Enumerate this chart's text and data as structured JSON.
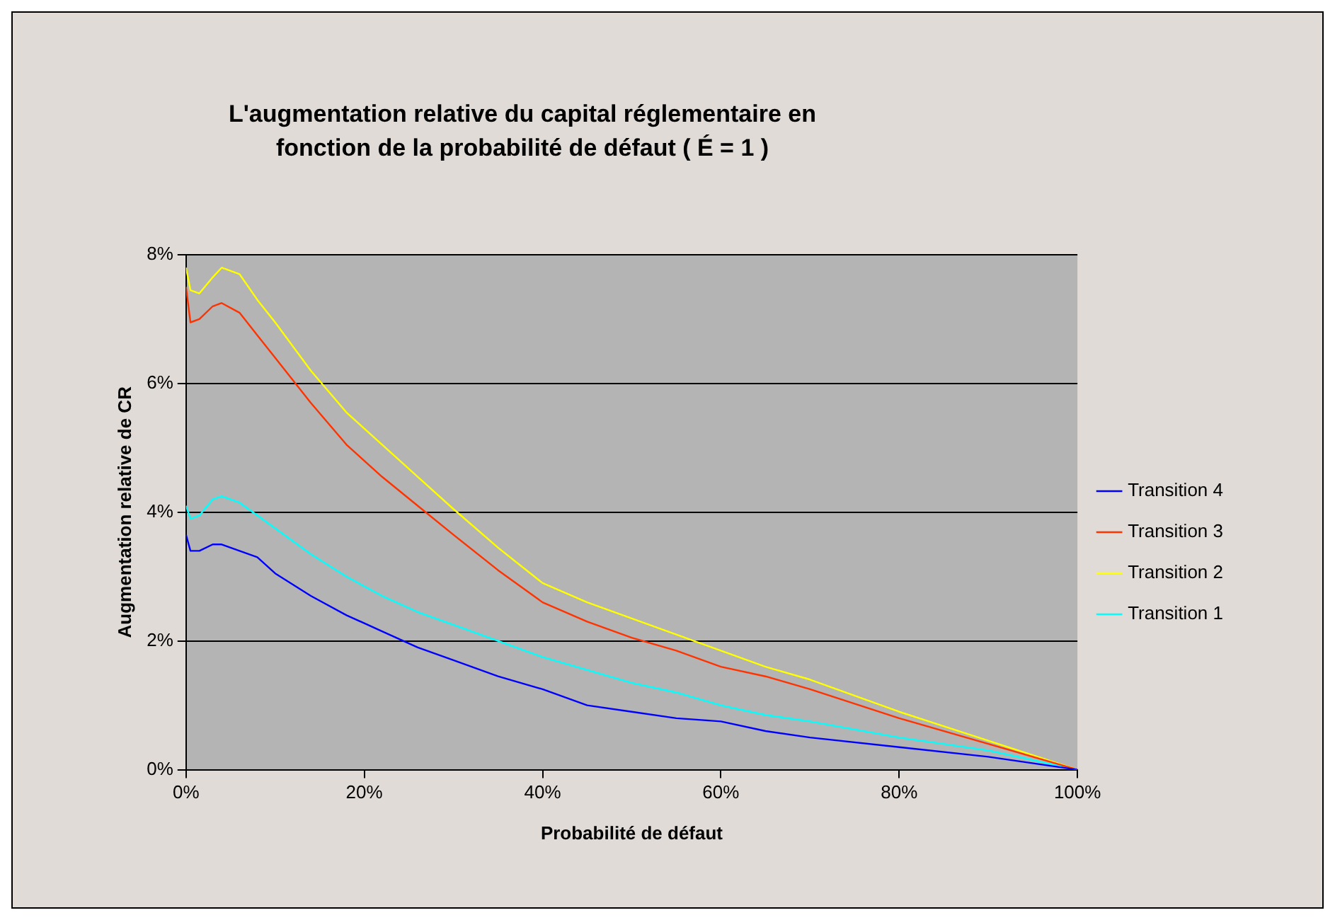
{
  "chart_data": {
    "type": "line",
    "title": "L'augmentation relative du capital réglementaire en fonction de la probabilité de défaut ( É = 1 )",
    "xlabel": "Probabilité de défaut",
    "ylabel": "Augmentation relative de CR",
    "x": [
      0,
      0.5,
      1.5,
      3,
      4,
      6,
      8,
      10,
      14,
      18,
      22,
      26,
      30,
      35,
      40,
      45,
      50,
      55,
      60,
      65,
      70,
      80,
      90,
      100
    ],
    "series": [
      {
        "name": "Transition 4",
        "color": "#0000ff",
        "values": [
          3.65,
          3.4,
          3.4,
          3.5,
          3.5,
          3.4,
          3.3,
          3.05,
          2.7,
          2.4,
          2.15,
          1.9,
          1.7,
          1.45,
          1.25,
          1.0,
          0.9,
          0.8,
          0.75,
          0.6,
          0.5,
          0.35,
          0.2,
          0
        ]
      },
      {
        "name": "Transition 3",
        "color": "#ff3300",
        "values": [
          7.5,
          6.95,
          7.0,
          7.2,
          7.25,
          7.1,
          6.75,
          6.4,
          5.7,
          5.05,
          4.55,
          4.1,
          3.65,
          3.1,
          2.6,
          2.3,
          2.05,
          1.85,
          1.6,
          1.45,
          1.25,
          0.8,
          0.4,
          0
        ]
      },
      {
        "name": "Transition 2",
        "color": "#ffff00",
        "values": [
          7.8,
          7.45,
          7.4,
          7.65,
          7.8,
          7.7,
          7.3,
          6.95,
          6.2,
          5.55,
          5.05,
          4.55,
          4.05,
          3.45,
          2.9,
          2.6,
          2.35,
          2.1,
          1.85,
          1.6,
          1.4,
          0.9,
          0.45,
          0
        ]
      },
      {
        "name": "Transition 1",
        "color": "#00ffff",
        "values": [
          4.1,
          3.9,
          3.95,
          4.2,
          4.25,
          4.15,
          3.95,
          3.75,
          3.35,
          3.0,
          2.7,
          2.45,
          2.25,
          2.0,
          1.75,
          1.55,
          1.35,
          1.2,
          1.0,
          0.85,
          0.75,
          0.5,
          0.3,
          0
        ]
      }
    ],
    "xlim": [
      0,
      100
    ],
    "xticks": [
      {
        "value": 0,
        "label": "0%"
      },
      {
        "value": 20,
        "label": "20%"
      },
      {
        "value": 40,
        "label": "40%"
      },
      {
        "value": 60,
        "label": "60%"
      },
      {
        "value": 80,
        "label": "80%"
      },
      {
        "value": 100,
        "label": "100%"
      }
    ],
    "ylim": [
      0,
      8
    ],
    "yticks": [
      {
        "value": 0,
        "label": "0%"
      },
      {
        "value": 2,
        "label": "2%"
      },
      {
        "value": 4,
        "label": "4%"
      },
      {
        "value": 6,
        "label": "6%"
      },
      {
        "value": 8,
        "label": "8%"
      }
    ],
    "grid": "y",
    "legend": "right",
    "marker": "none",
    "line_style": "solid"
  }
}
